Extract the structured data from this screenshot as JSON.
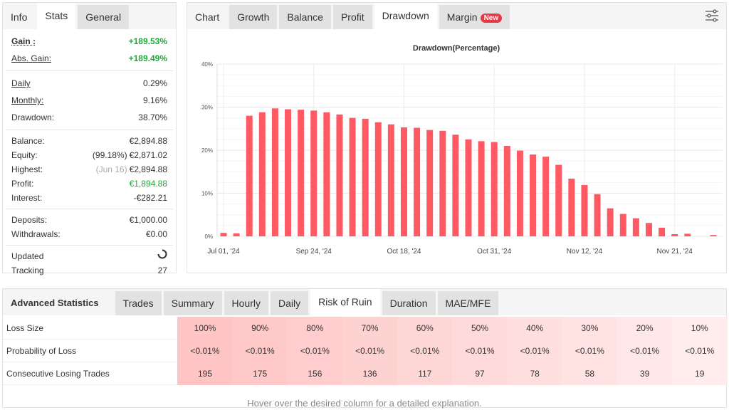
{
  "left": {
    "tabs": [
      "Info",
      "Stats",
      "General"
    ],
    "active_tab": "Stats",
    "groups": [
      [
        {
          "label": "Gain :",
          "value": "+189.53%",
          "style": "dotted",
          "color": "green"
        },
        {
          "label": "Abs. Gain:",
          "value": "+189.49%",
          "style": "underline",
          "color": "green"
        }
      ],
      [
        {
          "label": "Daily",
          "value": "0.29%",
          "style": "underline"
        },
        {
          "label": "Monthly:",
          "value": "9.16%",
          "style": "underline"
        },
        {
          "label": "Drawdown:",
          "value": "38.70%"
        }
      ],
      [
        {
          "label": "Balance:",
          "value": "€2,894.88"
        },
        {
          "label": "Equity:",
          "note": "(99.18%)",
          "value": "€2,871.02"
        },
        {
          "label": "Highest:",
          "note": "(Jun 16)",
          "note_gray": true,
          "value": "€2,894.88"
        },
        {
          "label": "Profit:",
          "value": "€1,894.88",
          "color": "green"
        },
        {
          "label": "Interest:",
          "value": "-€282.21"
        }
      ],
      [
        {
          "label": "Deposits:",
          "value": "€1,000.00"
        },
        {
          "label": "Withdrawals:",
          "value": "€0.00"
        }
      ],
      [
        {
          "label": "Updated",
          "icon": "loading-spinner-icon"
        },
        {
          "label": "Tracking",
          "value": "27"
        }
      ]
    ]
  },
  "chart_panel": {
    "tabs": [
      "Chart",
      "Growth",
      "Balance",
      "Profit",
      "Drawdown",
      "Margin"
    ],
    "active_tab": "Drawdown",
    "badge": "New",
    "settings_icon": "sliders-icon"
  },
  "chart_data": {
    "type": "bar",
    "title": "Drawdown(Percentage)",
    "color": "#ff5a63",
    "ylim": [
      0,
      40
    ],
    "yticks": [
      "0%",
      "10%",
      "20%",
      "30%",
      "40%"
    ],
    "grid": true,
    "x_tick_labels": [
      "Jul 01, '24",
      "Sep 24, '24",
      "Oct 18, '24",
      "Oct 31, '24",
      "Nov 12, '24",
      "Nov 21, '24"
    ],
    "x_tick_every": 7,
    "values": [
      0.8,
      0.7,
      28.0,
      28.8,
      29.7,
      29.5,
      29.4,
      29.2,
      28.8,
      28.3,
      27.5,
      27.3,
      26.5,
      26.0,
      25.3,
      25.2,
      24.7,
      24.5,
      23.6,
      22.5,
      22.1,
      21.9,
      21.0,
      19.9,
      19.0,
      18.5,
      16.6,
      13.4,
      11.9,
      9.8,
      6.5,
      5.2,
      4.2,
      3.1,
      2.0,
      0.5,
      0.6,
      0,
      0.3
    ]
  },
  "bottom": {
    "tabs": [
      "Advanced Statistics",
      "Trades",
      "Summary",
      "Hourly",
      "Daily",
      "Risk of Ruin",
      "Duration",
      "MAE/MFE"
    ],
    "active_tab": "Risk of Ruin",
    "rows": [
      {
        "label": "Loss Size",
        "cells": [
          "100%",
          "90%",
          "80%",
          "70%",
          "60%",
          "50%",
          "40%",
          "30%",
          "20%",
          "10%"
        ]
      },
      {
        "label": "Probability of Loss",
        "cells": [
          "<0.01%",
          "<0.01%",
          "<0.01%",
          "<0.01%",
          "<0.01%",
          "<0.01%",
          "<0.01%",
          "<0.01%",
          "<0.01%",
          "<0.01%"
        ]
      },
      {
        "label": "Consecutive Losing Trades",
        "cells": [
          "195",
          "175",
          "156",
          "136",
          "117",
          "97",
          "78",
          "58",
          "39",
          "19"
        ]
      }
    ],
    "colors": [
      "#ffc4c4",
      "#ffc9c9",
      "#ffcdcd",
      "#ffd2d2",
      "#ffd6d6",
      "#ffdada",
      "#ffdede",
      "#ffe3e3",
      "#ffe7e7",
      "#ffecec"
    ],
    "footer": "Hover over the desired column for a detailed explanation."
  }
}
